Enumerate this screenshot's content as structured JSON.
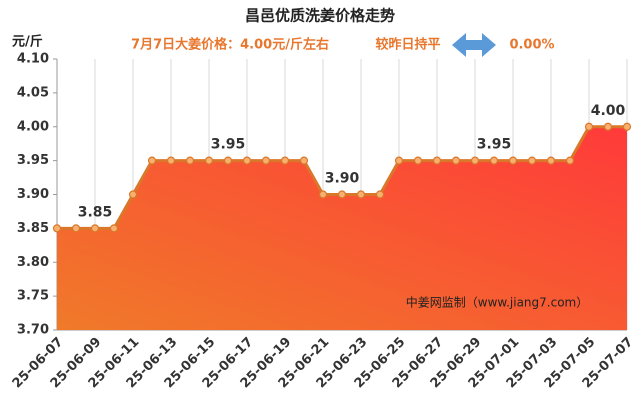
{
  "chart_data": {
    "type": "area",
    "title": "昌邑优质洗姜价格走势",
    "subtitle": "7月7日大姜价格：4.00元/斤左右",
    "change_text": "较昨日持平",
    "change_value": "0.00%",
    "y_axis_label": "元/斤",
    "watermark": "中姜网监制（www.jiang7.com）",
    "categories": [
      "25-06-07",
      null,
      "25-06-09",
      null,
      "25-06-11",
      null,
      "25-06-13",
      null,
      "25-06-15",
      null,
      "25-06-17",
      null,
      "25-06-19",
      null,
      "25-06-21",
      null,
      "25-06-23",
      null,
      "25-06-25",
      null,
      "25-06-27",
      null,
      "25-06-29",
      null,
      "25-07-01",
      null,
      "25-07-03",
      null,
      "25-07-05",
      null,
      "25-07-07"
    ],
    "series": [
      {
        "name": "昌邑优质洗姜",
        "color": "#d9782a",
        "fill_top": "#ff3a3a",
        "fill_bottom": "#f07a2a",
        "marker_color": "#f8b070",
        "values": [
          3.85,
          3.85,
          3.85,
          3.85,
          3.9,
          3.95,
          3.95,
          3.95,
          3.95,
          3.95,
          3.95,
          3.95,
          3.95,
          3.95,
          3.9,
          3.9,
          3.9,
          3.9,
          3.95,
          3.95,
          3.95,
          3.95,
          3.95,
          3.95,
          3.95,
          3.95,
          3.95,
          3.95,
          4.0,
          4.0,
          4.0
        ],
        "value_labels": [
          null,
          null,
          "3.85",
          null,
          null,
          null,
          null,
          null,
          null,
          "3.95",
          null,
          null,
          null,
          null,
          null,
          "3.90",
          null,
          null,
          null,
          null,
          null,
          null,
          null,
          "3.95",
          null,
          null,
          null,
          null,
          null,
          "4.00",
          null
        ]
      }
    ],
    "ylim": [
      3.7,
      4.1
    ],
    "yticks": [
      {
        "value": 3.7,
        "label": "3.70"
      },
      {
        "value": 3.75,
        "label": "3.75"
      },
      {
        "value": 3.8,
        "label": "3.80"
      },
      {
        "value": 3.85,
        "label": "3.85"
      },
      {
        "value": 3.9,
        "label": "3.90"
      },
      {
        "value": 3.95,
        "label": "3.95"
      },
      {
        "value": 4.0,
        "label": "4.00"
      },
      {
        "value": 4.05,
        "label": "4.05"
      },
      {
        "value": 4.1,
        "label": "4.10"
      }
    ],
    "grid": "x"
  }
}
